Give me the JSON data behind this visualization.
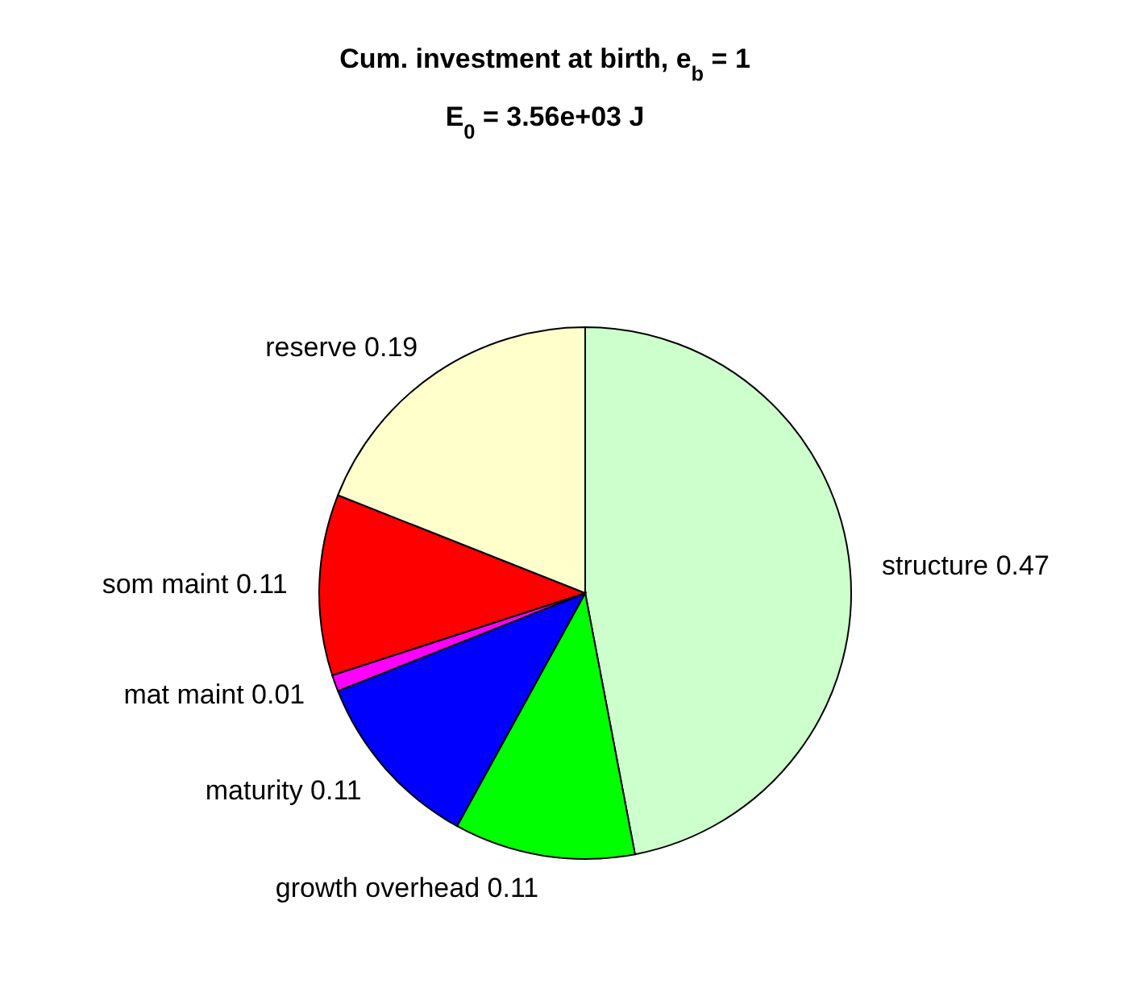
{
  "chart_data": {
    "type": "pie",
    "title": "Cum. investment at birth, e$_{b}$ = 1",
    "subtitle": "E$_{0}$ = 3.56e+03 J",
    "categories": [
      "structure 0.47",
      "growth overhead 0.11",
      "maturity 0.11",
      "mat maint 0.01",
      "som maint 0.11",
      "reserve 0.19"
    ],
    "values": [
      0.47,
      0.11,
      0.11,
      0.01,
      0.11,
      0.19
    ],
    "colors": [
      "#ccffcc",
      "#00ff00",
      "#0000ff",
      "#ff00ff",
      "#ff0000",
      "#ffffcc"
    ],
    "legend": false
  }
}
